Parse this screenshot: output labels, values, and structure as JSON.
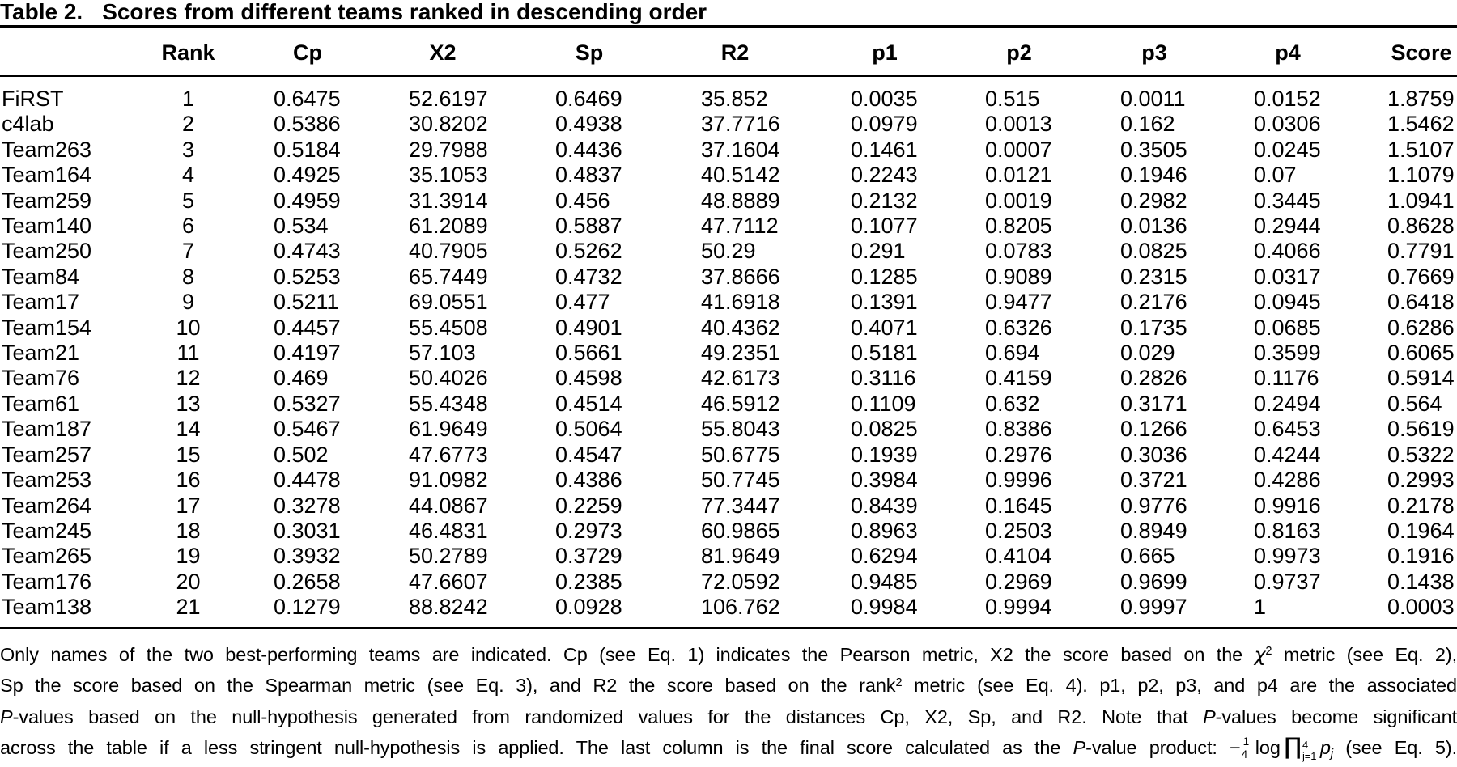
{
  "title": {
    "label": "Table 2.",
    "caption": "Scores from different teams ranked in descending order"
  },
  "colors": {
    "text": "#000000",
    "background": "#ffffff",
    "rule": "#000000"
  },
  "table": {
    "columns": [
      "",
      "Rank",
      "Cp",
      "X2",
      "Sp",
      "R2",
      "p1",
      "p2",
      "p3",
      "p4",
      "Score"
    ],
    "rows": [
      [
        "FiRST",
        "1",
        "0.6475",
        "52.6197",
        "0.6469",
        "35.852",
        "0.0035",
        "0.515",
        "0.0011",
        "0.0152",
        "1.8759"
      ],
      [
        "c4lab",
        "2",
        "0.5386",
        "30.8202",
        "0.4938",
        "37.7716",
        "0.0979",
        "0.0013",
        "0.162",
        "0.0306",
        "1.5462"
      ],
      [
        "Team263",
        "3",
        "0.5184",
        "29.7988",
        "0.4436",
        "37.1604",
        "0.1461",
        "0.0007",
        "0.3505",
        "0.0245",
        "1.5107"
      ],
      [
        "Team164",
        "4",
        "0.4925",
        "35.1053",
        "0.4837",
        "40.5142",
        "0.2243",
        "0.0121",
        "0.1946",
        "0.07",
        "1.1079"
      ],
      [
        "Team259",
        "5",
        "0.4959",
        "31.3914",
        "0.456",
        "48.8889",
        "0.2132",
        "0.0019",
        "0.2982",
        "0.3445",
        "1.0941"
      ],
      [
        "Team140",
        "6",
        "0.534",
        "61.2089",
        "0.5887",
        "47.7112",
        "0.1077",
        "0.8205",
        "0.0136",
        "0.2944",
        "0.8628"
      ],
      [
        "Team250",
        "7",
        "0.4743",
        "40.7905",
        "0.5262",
        "50.29",
        "0.291",
        "0.0783",
        "0.0825",
        "0.4066",
        "0.7791"
      ],
      [
        "Team84",
        "8",
        "0.5253",
        "65.7449",
        "0.4732",
        "37.8666",
        "0.1285",
        "0.9089",
        "0.2315",
        "0.0317",
        "0.7669"
      ],
      [
        "Team17",
        "9",
        "0.5211",
        "69.0551",
        "0.477",
        "41.6918",
        "0.1391",
        "0.9477",
        "0.2176",
        "0.0945",
        "0.6418"
      ],
      [
        "Team154",
        "10",
        "0.4457",
        "55.4508",
        "0.4901",
        "40.4362",
        "0.4071",
        "0.6326",
        "0.1735",
        "0.0685",
        "0.6286"
      ],
      [
        "Team21",
        "11",
        "0.4197",
        "57.103",
        "0.5661",
        "49.2351",
        "0.5181",
        "0.694",
        "0.029",
        "0.3599",
        "0.6065"
      ],
      [
        "Team76",
        "12",
        "0.469",
        "50.4026",
        "0.4598",
        "42.6173",
        "0.3116",
        "0.4159",
        "0.2826",
        "0.1176",
        "0.5914"
      ],
      [
        "Team61",
        "13",
        "0.5327",
        "55.4348",
        "0.4514",
        "46.5912",
        "0.1109",
        "0.632",
        "0.3171",
        "0.2494",
        "0.564"
      ],
      [
        "Team187",
        "14",
        "0.5467",
        "61.9649",
        "0.5064",
        "55.8043",
        "0.0825",
        "0.8386",
        "0.1266",
        "0.6453",
        "0.5619"
      ],
      [
        "Team257",
        "15",
        "0.502",
        "47.6773",
        "0.4547",
        "50.6775",
        "0.1939",
        "0.2976",
        "0.3036",
        "0.4244",
        "0.5322"
      ],
      [
        "Team253",
        "16",
        "0.4478",
        "91.0982",
        "0.4386",
        "50.7745",
        "0.3984",
        "0.9996",
        "0.3721",
        "0.4286",
        "0.2993"
      ],
      [
        "Team264",
        "17",
        "0.3278",
        "44.0867",
        "0.2259",
        "77.3447",
        "0.8439",
        "0.1645",
        "0.9776",
        "0.9916",
        "0.2178"
      ],
      [
        "Team245",
        "18",
        "0.3031",
        "46.4831",
        "0.2973",
        "60.9865",
        "0.8963",
        "0.2503",
        "0.8949",
        "0.8163",
        "0.1964"
      ],
      [
        "Team265",
        "19",
        "0.3932",
        "50.2789",
        "0.3729",
        "81.9649",
        "0.6294",
        "0.4104",
        "0.665",
        "0.9973",
        "0.1916"
      ],
      [
        "Team176",
        "20",
        "0.2658",
        "47.6607",
        "0.2385",
        "72.0592",
        "0.9485",
        "0.2969",
        "0.9699",
        "0.9737",
        "0.1438"
      ],
      [
        "Team138",
        "21",
        "0.1279",
        "88.8242",
        "0.0928",
        "106.762",
        "0.9984",
        "0.9994",
        "0.9997",
        "1",
        "0.0003"
      ]
    ]
  },
  "footnote": {
    "lines": [
      [
        {
          "t": "Only names of the two best-performing teams are indicated. Cp (see Eq. 1) indicates the Pearson metric, X2 the score based on the "
        },
        {
          "t": "χ",
          "s": "chi"
        },
        {
          "t": "2",
          "s": "sup"
        },
        {
          "t": " metric (see Eq. 2),"
        }
      ],
      [
        {
          "t": "Sp the score based on the Spearman metric (see Eq. 3), and R2 the score based on the rank"
        },
        {
          "t": "2",
          "s": "sup"
        },
        {
          "t": " metric (see Eq. 4). p1, p2, p3, and p4 are the associated"
        }
      ],
      [
        {
          "t": "P",
          "s": "i"
        },
        {
          "t": "-values based on the null-hypothesis generated from randomized values for the distances Cp, X2, Sp, and R2. Note that "
        },
        {
          "t": "P",
          "s": "i"
        },
        {
          "t": "-values become significant"
        }
      ],
      [
        {
          "t": "across the table if a less stringent null-hypothesis is applied. The last column is the final score calculated as the "
        },
        {
          "t": "P",
          "s": "i"
        },
        {
          "t": "-value product: "
        },
        {
          "s": "formula",
          "minus": "−",
          "num": "1",
          "den": "4",
          "log": "log",
          "prod": "∏",
          "up": "4",
          "lo": "j=1",
          "var": "p",
          "varsub": "j"
        },
        {
          "t": " (see Eq. 5)."
        }
      ]
    ]
  }
}
